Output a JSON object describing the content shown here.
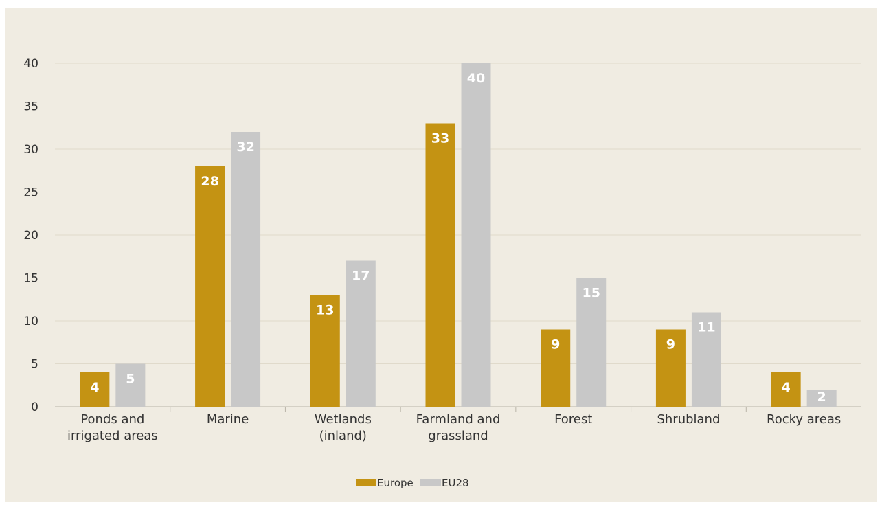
{
  "chart_data": {
    "type": "bar",
    "categories": [
      [
        "Ponds and",
        "irrigated areas"
      ],
      [
        "Marine"
      ],
      [
        "Wetlands",
        "(inland)"
      ],
      [
        "Farmland and",
        "grassland"
      ],
      [
        "Forest"
      ],
      [
        "Shrubland"
      ],
      [
        "Rocky areas"
      ]
    ],
    "series": [
      {
        "name": "Europe",
        "values": [
          4,
          28,
          13,
          33,
          9,
          9,
          4
        ],
        "color": "#c49313"
      },
      {
        "name": "EU28",
        "values": [
          5,
          32,
          17,
          40,
          15,
          11,
          2
        ],
        "color": "#c8c8c8"
      }
    ],
    "yticks": [
      0,
      5,
      10,
      15,
      20,
      25,
      30,
      35,
      40
    ],
    "ylim": [
      0,
      40
    ],
    "grid": true,
    "legend_position": "bottom-center",
    "title": "",
    "xlabel": "",
    "ylabel": ""
  }
}
